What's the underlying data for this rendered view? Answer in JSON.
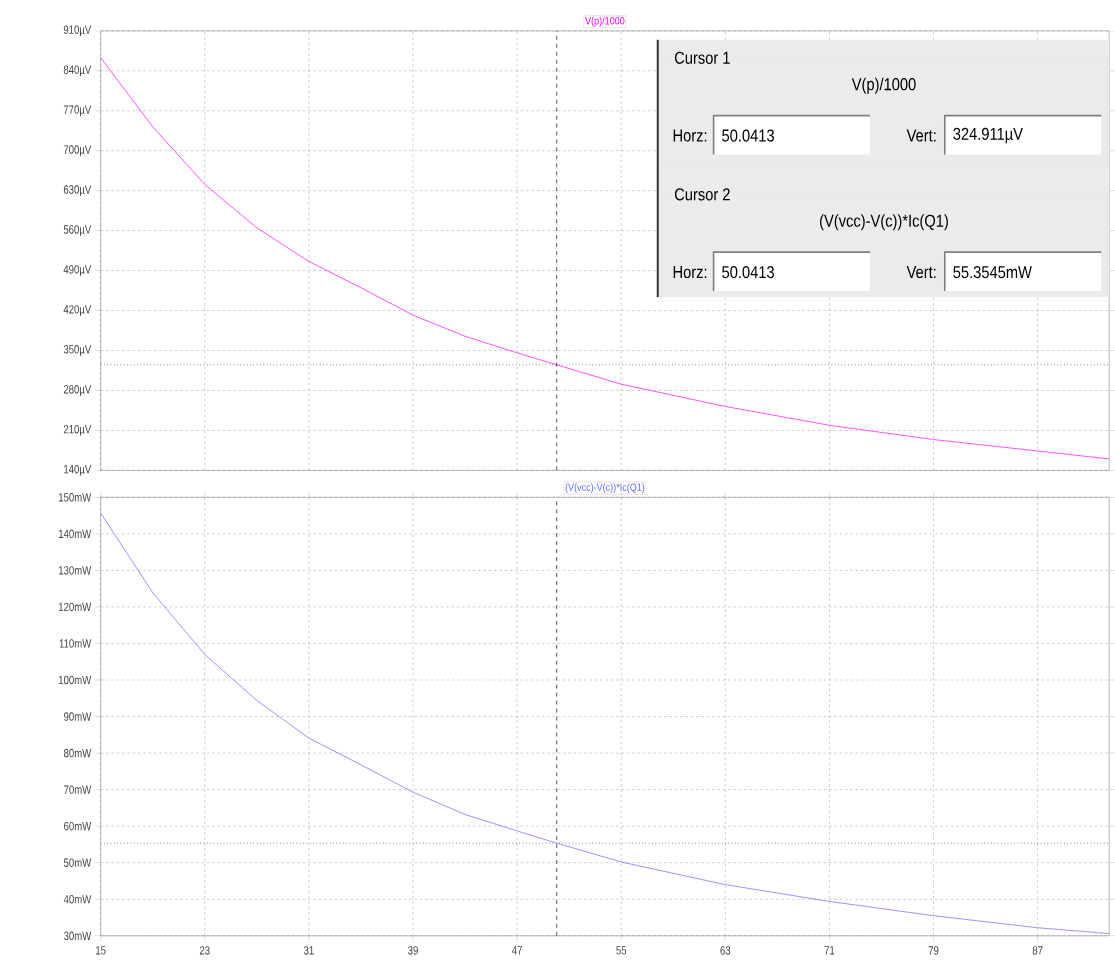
{
  "chart_data": [
    {
      "type": "line",
      "title": "V(p)/1000",
      "series": [
        {
          "color": "#ff00ff",
          "x": [
            15,
            19,
            23,
            27,
            31,
            35,
            39,
            43,
            47,
            50.0413,
            55,
            63,
            71,
            79,
            87,
            92.5
          ],
          "values": [
            863,
            742,
            641,
            565,
            506,
            460,
            412,
            375,
            346,
            324.9,
            291,
            252,
            219,
            194,
            174,
            160
          ]
        }
      ],
      "xlim": [
        15,
        92.5
      ],
      "xticks": [
        15,
        23,
        31,
        39,
        47,
        55,
        63,
        71,
        79,
        87
      ],
      "ylim": [
        140,
        910
      ],
      "yticks": [
        {
          "value": 140,
          "label": "140µV"
        },
        {
          "value": 210,
          "label": "210µV"
        },
        {
          "value": 280,
          "label": "280µV"
        },
        {
          "value": 350,
          "label": "350µV"
        },
        {
          "value": 420,
          "label": "420µV"
        },
        {
          "value": 490,
          "label": "490µV"
        },
        {
          "value": 560,
          "label": "560µV"
        },
        {
          "value": 630,
          "label": "630µV"
        },
        {
          "value": 700,
          "label": "700µV"
        },
        {
          "value": 770,
          "label": "770µV"
        },
        {
          "value": 840,
          "label": "840µV"
        },
        {
          "value": 910,
          "label": "910µV"
        }
      ],
      "tick_labels": "y",
      "grid": true,
      "marker": "none",
      "line_style": "solid",
      "ref_lines": [
        {
          "axis": "x",
          "value": 50.0413,
          "color": "#000000",
          "line_style": "dashed"
        },
        {
          "axis": "y",
          "value": 324.911,
          "color": "#000000",
          "line_style": "dotted"
        }
      ],
      "annotations": [
        "Cursor 1",
        "V(p)/1000",
        "Horz:",
        "50.0413",
        "Vert:",
        "324.911µV",
        "Cursor 2",
        "(V(vcc)-V(c))*Ic(Q1)",
        "Horz:",
        "50.0413",
        "Vert:",
        "55.3545mW"
      ]
    },
    {
      "type": "line",
      "title": "(V(vcc)-V(c))*Ic(Q1)",
      "series": [
        {
          "color": "#6464ff",
          "x": [
            15,
            19,
            23,
            27,
            31,
            35,
            39,
            43,
            47,
            50.0413,
            55,
            63,
            71,
            79,
            87,
            92.5
          ],
          "values": [
            145.7,
            123.9,
            107.0,
            94.4,
            84.1,
            76.8,
            69.3,
            63.2,
            58.7,
            55.35,
            50.2,
            44.0,
            39.4,
            35.5,
            32.2,
            30.6
          ]
        }
      ],
      "xlim": [
        15,
        92.5
      ],
      "xticks": [
        15,
        23,
        31,
        39,
        47,
        55,
        63,
        71,
        79,
        87
      ],
      "ylim": [
        30,
        150
      ],
      "yticks": [
        {
          "value": 30,
          "label": "30mW"
        },
        {
          "value": 40,
          "label": "40mW"
        },
        {
          "value": 50,
          "label": "50mW"
        },
        {
          "value": 60,
          "label": "60mW"
        },
        {
          "value": 70,
          "label": "70mW"
        },
        {
          "value": 80,
          "label": "80mW"
        },
        {
          "value": 90,
          "label": "90mW"
        },
        {
          "value": 100,
          "label": "100mW"
        },
        {
          "value": 110,
          "label": "110mW"
        },
        {
          "value": 120,
          "label": "120mW"
        },
        {
          "value": 130,
          "label": "130mW"
        },
        {
          "value": 140,
          "label": "140mW"
        },
        {
          "value": 150,
          "label": "150mW"
        }
      ],
      "grid": true,
      "marker": "none",
      "line_style": "solid",
      "ref_lines": [
        {
          "axis": "x",
          "value": 50.0413,
          "color": "#000000",
          "line_style": "dashed"
        },
        {
          "axis": "y",
          "value": 55.3545,
          "color": "#000000",
          "line_style": "dotted"
        }
      ]
    }
  ]
}
